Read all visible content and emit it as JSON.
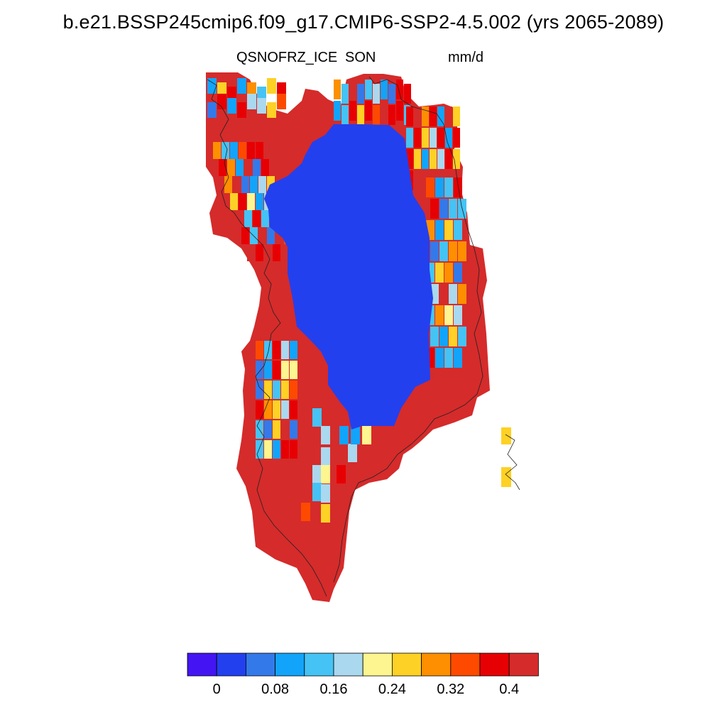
{
  "title": "b.e21.BSSP245cmip6.f09_g17.CMIP6-SSP2-4.5.002 (yrs 2065-2089)",
  "left_string": "QSNOFRZ_ICE",
  "center_string": "SON",
  "right_string": "mm/d",
  "colorbar": {
    "colors": [
      "#4415f2",
      "#2340ee",
      "#3479e9",
      "#12a4fa",
      "#45c3f4",
      "#aad8ee",
      "#fdf58f",
      "#fdd125",
      "#fd8f00",
      "#fd4a00",
      "#e70003",
      "#d52b2b"
    ],
    "tick_labels": [
      "0",
      "0.08",
      "0.16",
      "0.24",
      "0.32",
      "0.4"
    ]
  },
  "legend": {
    "core": "#2340ee",
    "margin": "#d52b2b"
  }
}
